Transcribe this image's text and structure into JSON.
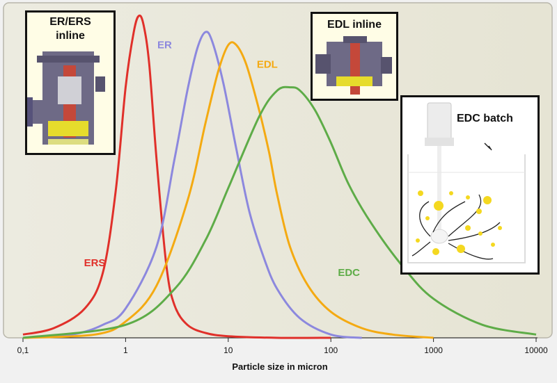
{
  "chart_data": {
    "type": "line",
    "x_scale": "log",
    "xlim": [
      0.1,
      10000
    ],
    "xlabel": "Particle size in micron",
    "ylabel": "",
    "title": "",
    "grid": false,
    "x_ticks": [
      "0,1",
      "1",
      "10",
      "100",
      "1000",
      "10000"
    ],
    "series": [
      {
        "name": "ERS",
        "color": "#e0302a",
        "x": [
          0.1,
          0.2,
          0.4,
          0.6,
          0.8,
          1.0,
          1.2,
          1.35,
          1.5,
          1.7,
          2.0,
          2.5,
          3.0,
          4.0,
          6.0,
          10,
          30,
          100
        ],
        "y": [
          1,
          3,
          9,
          20,
          45,
          77,
          94,
          99,
          96,
          84,
          55,
          22,
          10,
          4,
          1.5,
          0.5,
          0,
          0
        ]
      },
      {
        "name": "ER",
        "color": "#8c88de",
        "x": [
          0.1,
          0.3,
          0.6,
          1.0,
          2.0,
          3.0,
          4.0,
          5.0,
          6.0,
          7.0,
          9.0,
          12,
          16,
          22,
          30,
          50,
          100,
          200
        ],
        "y": [
          0,
          1,
          4,
          9,
          28,
          55,
          76,
          89,
          94,
          91,
          78,
          58,
          39,
          25,
          15,
          6,
          1,
          0
        ]
      },
      {
        "name": "EDL",
        "color": "#f4aa12",
        "x": [
          0.1,
          0.5,
          1.0,
          2.0,
          4.0,
          6.0,
          8.0,
          10,
          12,
          15,
          20,
          25,
          30,
          40,
          60,
          100,
          200,
          400,
          1000
        ],
        "y": [
          0,
          1,
          5,
          16,
          42,
          66,
          82,
          90,
          90,
          84,
          70,
          57,
          44,
          28,
          16,
          8,
          3,
          1,
          0
        ]
      },
      {
        "name": "EDC",
        "color": "#5eac48",
        "x": [
          0.1,
          1.0,
          3.0,
          6.0,
          10,
          20,
          30,
          40,
          50,
          70,
          100,
          150,
          250,
          500,
          1000,
          3000,
          10000
        ],
        "y": [
          0,
          4,
          15,
          30,
          46,
          68,
          76,
          77,
          76,
          70,
          60,
          47,
          35,
          22,
          12,
          4,
          1
        ]
      }
    ],
    "annotations": [
      "ERS",
      "ER",
      "EDL",
      "EDC"
    ]
  },
  "insets": {
    "er_title_line1": "ER/ERS",
    "er_title_line2": "inline",
    "edl_title": "EDL inline",
    "edc_title": "EDC batch"
  }
}
